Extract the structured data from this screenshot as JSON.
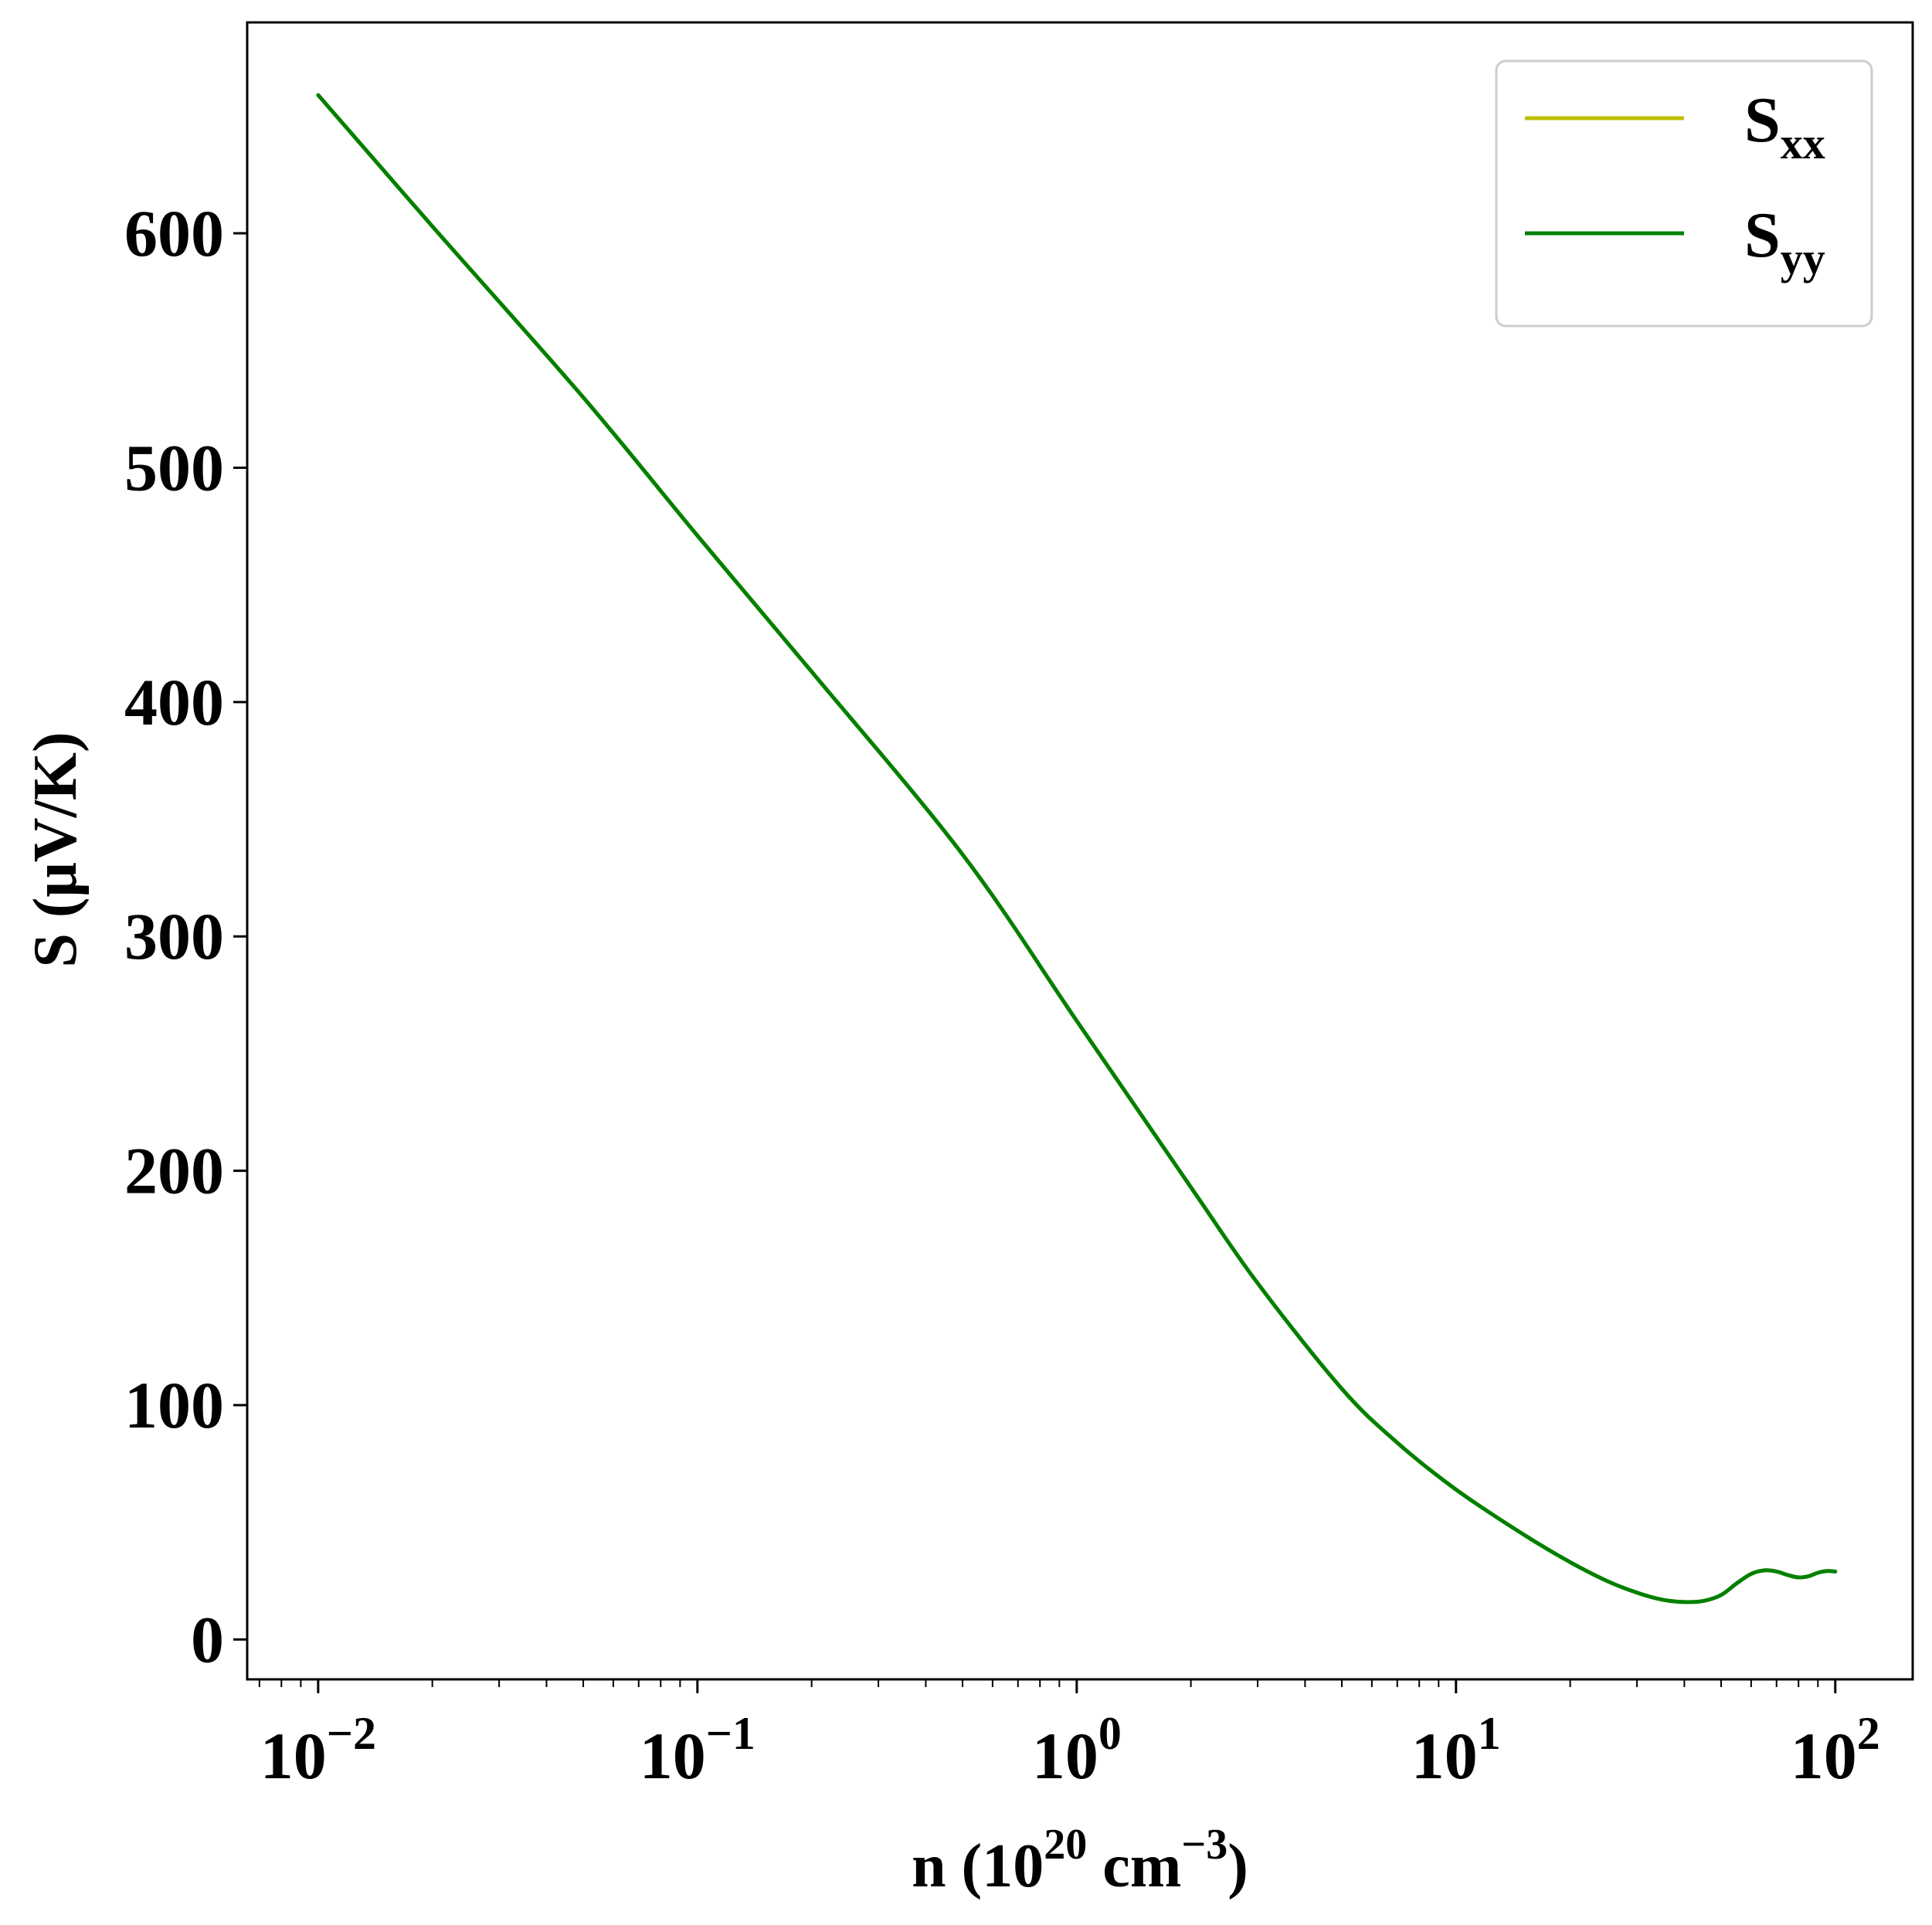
{
  "chart_data": {
    "type": "line",
    "xscale": "log",
    "xlim": [
      0.0065,
      160
    ],
    "ylim": [
      -17,
      690
    ],
    "xlabel": {
      "prefix": "n (10",
      "exp1": "20",
      "mid": " cm",
      "exp2": "−3",
      "suffix": ")"
    },
    "ylabel": "S (μV/K)",
    "x_ticks": [
      {
        "value": 0.01,
        "base": "10",
        "exp": "−2"
      },
      {
        "value": 0.1,
        "base": "10",
        "exp": "−1"
      },
      {
        "value": 1,
        "base": "10",
        "exp": "0"
      },
      {
        "value": 10,
        "base": "10",
        "exp": "1"
      },
      {
        "value": 100,
        "base": "10",
        "exp": "2"
      }
    ],
    "y_ticks": [
      0,
      100,
      200,
      300,
      400,
      500,
      600
    ],
    "grid": false,
    "legend": {
      "position": "top-right",
      "entries": [
        {
          "base": "S",
          "sub": "xx",
          "color": "#bfbf00"
        },
        {
          "base": "S",
          "sub": "yy",
          "color": "#008000"
        }
      ]
    },
    "series": [
      {
        "name": "Sxx",
        "color": "#bfbf00",
        "x": [
          0.01,
          0.02,
          0.05,
          0.1,
          0.2,
          0.5,
          1,
          2,
          3,
          5,
          7,
          10,
          15,
          20,
          25,
          30,
          35,
          40,
          45,
          50,
          55,
          60,
          65,
          70,
          75,
          80,
          85,
          90,
          95,
          100
        ],
        "y": [
          659,
          603,
          530,
          471,
          413,
          335,
          264,
          193,
          152,
          107,
          84,
          64,
          45,
          33,
          25,
          20,
          17,
          16,
          16.5,
          19,
          24,
          28,
          29.5,
          29,
          27.5,
          26.5,
          27,
          28.5,
          29.2,
          29
        ]
      },
      {
        "name": "Syy",
        "color": "#008000",
        "x": [
          0.01,
          0.02,
          0.05,
          0.1,
          0.2,
          0.5,
          1,
          2,
          3,
          5,
          7,
          10,
          15,
          20,
          25,
          30,
          35,
          40,
          45,
          50,
          55,
          60,
          65,
          70,
          75,
          80,
          85,
          90,
          95,
          100
        ],
        "y": [
          659,
          603,
          530,
          471,
          413,
          335,
          264,
          193,
          152,
          107,
          84,
          64,
          45,
          33,
          25,
          20,
          17,
          16,
          16.5,
          19,
          24,
          28,
          29.5,
          29,
          27.5,
          26.5,
          27,
          28.5,
          29.2,
          29
        ]
      }
    ]
  }
}
